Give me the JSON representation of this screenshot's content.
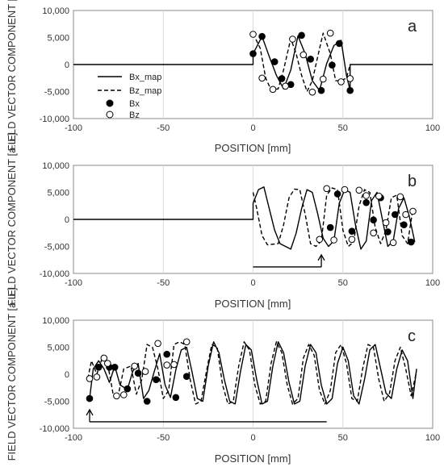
{
  "chart_data": [
    {
      "type": "line",
      "panel": "a",
      "xlabel": "POSITION [mm]",
      "ylabel": "FIELD VECTOR COMPONENT [a.u.]",
      "xlim": [
        -100,
        100
      ],
      "ylim": [
        -10000,
        10000
      ],
      "xticks": [
        "-100",
        "-50",
        "0",
        "50",
        "100"
      ],
      "yticks": [
        "10,000",
        "5,000",
        "0",
        "-5,000",
        "-10,000"
      ],
      "grid": true,
      "legend": {
        "placement": "left",
        "entries": [
          "Bx_map",
          "Bz_map",
          "Bx",
          "Bz"
        ]
      },
      "series": [
        {
          "name": "Bx_map",
          "style": "solid",
          "x": [
            -100,
            0,
            0,
            5,
            9,
            13,
            17,
            21,
            25,
            29,
            33,
            37,
            41,
            45,
            49,
            52,
            54,
            54,
            100
          ],
          "y": [
            0,
            0,
            2000,
            5200,
            1500,
            -2000,
            -4500,
            -1000,
            5300,
            2000,
            -3000,
            -4800,
            200,
            3500,
            4500,
            -2000,
            -4800,
            0,
            0
          ]
        },
        {
          "name": "Bz_map",
          "style": "dashed",
          "x": [
            0,
            4,
            7,
            10,
            14,
            17,
            21,
            24,
            27,
            30,
            33,
            36,
            39,
            43,
            46,
            49,
            52,
            54
          ],
          "y": [
            5700,
            3000,
            -2500,
            -4700,
            -4500,
            -1000,
            4800,
            2000,
            -2000,
            -5000,
            -3000,
            1500,
            5800,
            2000,
            -3000,
            -3000,
            -2500,
            0
          ]
        },
        {
          "name": "Bx",
          "marker": "filled",
          "x": [
            0,
            5,
            12,
            16,
            21,
            27,
            32,
            38,
            44,
            48,
            54
          ],
          "y": [
            2000,
            5200,
            500,
            -2600,
            -3700,
            5400,
            1000,
            -4800,
            -100,
            3900,
            -4800
          ]
        },
        {
          "name": "Bz",
          "marker": "open",
          "x": [
            0,
            5,
            11,
            18,
            22,
            28,
            33,
            39,
            43,
            49,
            54
          ],
          "y": [
            5600,
            -2500,
            -4600,
            -4000,
            4700,
            1800,
            -5100,
            -2700,
            5800,
            -3200,
            -2600
          ]
        }
      ]
    },
    {
      "type": "line",
      "panel": "b",
      "xlabel": "POSITION [mm]",
      "ylabel": "FIELD VECTOR COMPONENT [a.u.]",
      "xlim": [
        -100,
        100
      ],
      "ylim": [
        -10000,
        10000
      ],
      "xticks": [
        "-100",
        "-50",
        "0",
        "50",
        "100"
      ],
      "yticks": [
        "10,000",
        "5,000",
        "0",
        "-5,000",
        "-10,000"
      ],
      "grid": true,
      "arrow": {
        "from_x": 0,
        "to_x": 38,
        "y": -8800
      },
      "series": [
        {
          "name": "Bx_map",
          "style": "solid",
          "x": [
            -100,
            0,
            0,
            3,
            6,
            9,
            12,
            15,
            18,
            21,
            24,
            27,
            30,
            33,
            36,
            39,
            42,
            45,
            48,
            51,
            54,
            57,
            60,
            63,
            66,
            69,
            72,
            75,
            78,
            81,
            84,
            87,
            90
          ],
          "y": [
            0,
            0,
            3000,
            5500,
            6000,
            2000,
            -2000,
            -4500,
            -5000,
            -5500,
            -2500,
            2000,
            5500,
            5000,
            1000,
            -3500,
            -5000,
            -4000,
            3000,
            5500,
            5000,
            -1000,
            -5500,
            -4000,
            3500,
            5000,
            0,
            -5000,
            -4000,
            2000,
            4000,
            500,
            -4200
          ]
        },
        {
          "name": "Bz_map",
          "style": "dashed",
          "x": [
            0,
            2,
            5,
            8,
            11,
            14,
            17,
            20,
            23,
            26,
            29,
            32,
            35,
            38,
            41,
            44,
            47,
            50,
            53,
            56,
            59,
            62,
            65,
            68,
            71,
            74,
            77,
            80,
            83,
            86,
            89,
            91
          ],
          "y": [
            5000,
            2000,
            -3000,
            -4700,
            -4600,
            -4500,
            -1000,
            4000,
            5600,
            5500,
            1000,
            -4500,
            -5000,
            -4000,
            4500,
            5800,
            5500,
            -2000,
            -5000,
            -4200,
            2500,
            5500,
            5000,
            -1500,
            -4500,
            -2000,
            4000,
            4500,
            -3000,
            -4500,
            2000,
            1500
          ]
        },
        {
          "name": "Bx",
          "marker": "filled",
          "x": [
            43,
            47,
            55,
            63,
            67,
            71,
            75,
            79,
            84,
            88
          ],
          "y": [
            -1500,
            4700,
            -2200,
            3100,
            -100,
            4000,
            -2300,
            900,
            -1000,
            -4200
          ]
        },
        {
          "name": "Bz",
          "marker": "open",
          "x": [
            37,
            41,
            45,
            51,
            55,
            59,
            63,
            67,
            70,
            74,
            78,
            82,
            85,
            89
          ],
          "y": [
            -3700,
            5700,
            -3800,
            5500,
            -3700,
            5400,
            4400,
            -2500,
            4300,
            -600,
            -4300,
            4200,
            900,
            1500
          ]
        }
      ]
    },
    {
      "type": "line",
      "panel": "c",
      "xlabel": "POSITION [mm]",
      "ylabel": "FIELD VECTOR COMPONENT [a.u.]",
      "xlim": [
        -100,
        100
      ],
      "ylim": [
        -10000,
        10000
      ],
      "xticks": [
        "-100",
        "-50",
        "0",
        "50",
        "100"
      ],
      "yticks": [
        "10,000",
        "5,000",
        "0",
        "-5,000",
        "-10,000"
      ],
      "grid": true,
      "arrow": {
        "from_x": 41,
        "to_x": -91,
        "y": -8800
      },
      "series": [
        {
          "name": "Bx_map",
          "style": "solid",
          "x": [
            -91,
            -89,
            -86,
            -83,
            -80,
            -77,
            -74,
            -70,
            -67,
            -64,
            -61,
            -58,
            -55,
            -52,
            -49,
            -46,
            -43,
            -40,
            -37,
            -34,
            -31,
            -28,
            -25,
            -22,
            -19,
            -16,
            -13,
            -10,
            -7,
            -4,
            -1,
            2,
            5,
            8,
            11,
            14,
            17,
            20,
            23,
            26,
            29,
            32,
            35,
            38,
            41,
            44,
            47,
            50,
            53,
            56,
            59,
            62,
            65,
            68,
            71,
            74,
            77,
            80,
            83,
            86,
            89,
            91
          ],
          "y": [
            -4500,
            1000,
            2500,
            1000,
            -1500,
            1500,
            -2000,
            -2800,
            500,
            2000,
            -4500,
            -3000,
            500,
            3800,
            -2000,
            -4300,
            800,
            4500,
            5000,
            500,
            -4500,
            -5000,
            1500,
            6000,
            4000,
            -1000,
            -5000,
            -5500,
            500,
            5500,
            4500,
            -1000,
            -5500,
            -5000,
            1500,
            6000,
            4000,
            -1500,
            -5500,
            -5000,
            1500,
            5500,
            4000,
            -2000,
            -5500,
            -4500,
            2000,
            5000,
            2500,
            -4000,
            -5500,
            -1000,
            4500,
            5500,
            1000,
            -3500,
            -4500,
            1000,
            4500,
            2500,
            -4500,
            1000
          ]
        },
        {
          "name": "Bz_map",
          "style": "dashed",
          "x": [
            -92,
            -90,
            -87,
            -84,
            -81,
            -78,
            -75,
            -72,
            -68,
            -65,
            -62,
            -59,
            -56,
            -53,
            -50,
            -47,
            -44,
            -41,
            -38,
            -35,
            -32,
            -29,
            -26,
            -23,
            -20,
            -17,
            -14,
            -11,
            -8,
            -5,
            -2,
            1,
            4,
            7,
            10,
            13,
            16,
            19,
            22,
            25,
            28,
            31,
            34,
            37,
            40,
            43,
            46,
            49,
            52,
            55,
            58,
            61,
            64,
            67,
            70,
            73,
            76,
            79,
            82,
            85,
            88,
            91
          ],
          "y": [
            -800,
            2500,
            0,
            3000,
            2000,
            -3500,
            -3800,
            1000,
            1500,
            -3700,
            -1000,
            5500,
            5000,
            1000,
            -4500,
            -3000,
            5500,
            6000,
            5500,
            -1000,
            -5500,
            -5000,
            500,
            5500,
            5000,
            -2000,
            -5500,
            -5000,
            1500,
            6000,
            4500,
            -2000,
            -5500,
            -5000,
            2000,
            6000,
            4000,
            -2000,
            -5500,
            -4500,
            3000,
            5500,
            3500,
            -3000,
            -5500,
            -3000,
            4000,
            5500,
            2000,
            -4500,
            -5000,
            1000,
            5500,
            5000,
            -1000,
            -5000,
            -3500,
            2500,
            5000,
            1000,
            -4000,
            500
          ]
        },
        {
          "name": "Bx",
          "marker": "filled",
          "x": [
            -91,
            -86,
            -80,
            -77,
            -70,
            -64,
            -59,
            -54,
            -48,
            -43,
            -37
          ],
          "y": [
            -4500,
            1300,
            1300,
            1300,
            -2700,
            200,
            -5000,
            -1000,
            3700,
            -4300,
            -400
          ]
        },
        {
          "name": "Bz",
          "marker": "open",
          "x": [
            -91,
            -87,
            -83,
            -81,
            -76,
            -72,
            -66,
            -60,
            -53,
            -48,
            -44,
            -37
          ],
          "y": [
            -800,
            -500,
            3000,
            2000,
            -4000,
            -3800,
            1500,
            500,
            5700,
            1700,
            1800,
            6000
          ]
        }
      ]
    }
  ]
}
